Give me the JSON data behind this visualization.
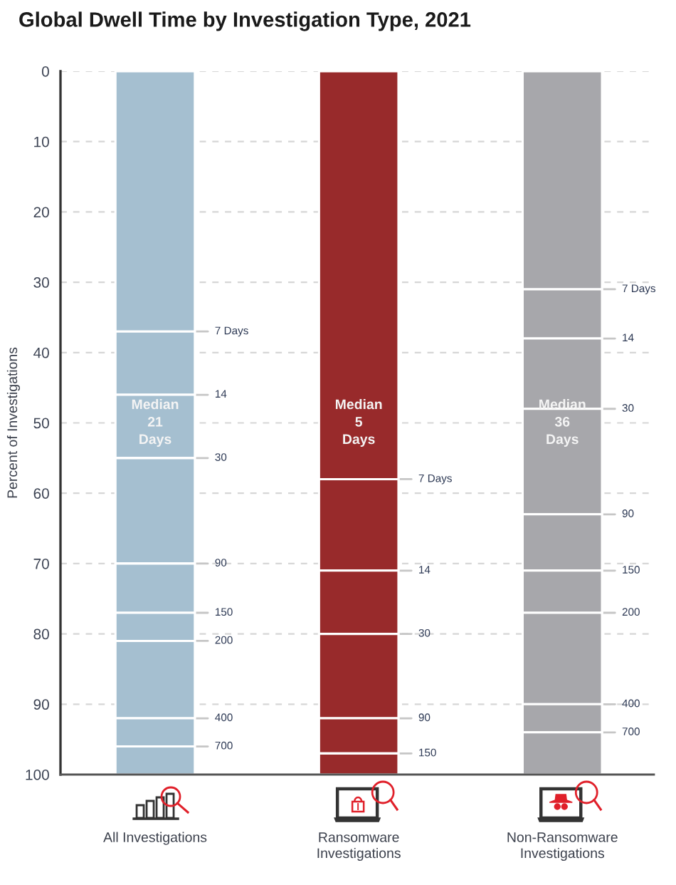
{
  "chart_data": {
    "type": "bar",
    "title": "Global Dwell Time by Investigation Type, 2021",
    "ylabel": "Percent of Investigations",
    "categories": [
      "All Investigations",
      "Ransomware\nInvestigations",
      "Non-Ransomware\nInvestigations"
    ],
    "stacked": true,
    "series": [
      {
        "colors": [
          "#a5bfd0",
          "#982a2b",
          "#a7a7ab"
        ],
        "values": [
          37,
          58,
          31
        ]
      },
      {
        "colors": [
          "#a5bfd0",
          "#982a2b",
          "#a7a7ab"
        ],
        "values": [
          9,
          13,
          7
        ]
      },
      {
        "colors": [
          "#a5bfd0",
          "#982a2b",
          "#a7a7ab"
        ],
        "values": [
          9,
          9,
          10
        ]
      },
      {
        "colors": [
          "#a5bfd0",
          "#982a2b",
          "#a7a7ab"
        ],
        "values": [
          15,
          12,
          15
        ]
      },
      {
        "colors": [
          "#a5bfd0",
          "#982a2b",
          "#a7a7ab"
        ],
        "values": [
          7,
          5,
          8
        ]
      },
      {
        "colors": [
          "#a5bfd0",
          "#982a2b",
          "#a7a7ab"
        ],
        "values": [
          4,
          3,
          6
        ]
      },
      {
        "colors": [
          "#a5bfd0",
          "#982a2b",
          "#a7a7ab"
        ],
        "values": [
          11,
          null,
          13
        ]
      },
      {
        "colors": [
          "#a5bfd0",
          "#982a2b",
          "#a7a7ab"
        ],
        "values": [
          4,
          null,
          4
        ]
      },
      {
        "colors": [
          "#a5bfd0",
          "#982a2b",
          "#a7a7ab"
        ],
        "values": [
          4,
          null,
          6
        ]
      }
    ],
    "ylim": [
      100,
      0
    ],
    "yticks": [
      0,
      10,
      20,
      30,
      40,
      50,
      60,
      70,
      80,
      90,
      100
    ],
    "grid": "y",
    "annotations": [
      "Median\n21\nDays",
      "Median\n5\nDays",
      "Median\n36\nDays",
      {
        "text": "7 Days",
        "x": "All Investigations",
        "y": 37
      },
      {
        "text": "14",
        "x": "All Investigations",
        "y": 46
      },
      {
        "text": "30",
        "x": "All Investigations",
        "y": 55
      },
      {
        "text": "90",
        "x": "All Investigations",
        "y": 70
      },
      {
        "text": "150",
        "x": "All Investigations",
        "y": 77
      },
      {
        "text": "200",
        "x": "All Investigations",
        "y": 81
      },
      {
        "text": "400",
        "x": "All Investigations",
        "y": 92
      },
      {
        "text": "700",
        "x": "All Investigations",
        "y": 96
      },
      {
        "text": "7 Days",
        "x": "Ransomware\nInvestigations",
        "y": 58
      },
      {
        "text": "14",
        "x": "Ransomware\nInvestigations",
        "y": 71
      },
      {
        "text": "30",
        "x": "Ransomware\nInvestigations",
        "y": 80
      },
      {
        "text": "90",
        "x": "Ransomware\nInvestigations",
        "y": 92
      },
      {
        "text": "150",
        "x": "Ransomware\nInvestigations",
        "y": 97
      },
      {
        "text": "7 Days",
        "x": "Non-Ransomware\nInvestigations",
        "y": 31
      },
      {
        "text": "14",
        "x": "Non-Ransomware\nInvestigations",
        "y": 38
      },
      {
        "text": "30",
        "x": "Non-Ransomware\nInvestigations",
        "y": 48
      },
      {
        "text": "90",
        "x": "Non-Ransomware\nInvestigations",
        "y": 63
      },
      {
        "text": "150",
        "x": "Non-Ransomware\nInvestigations",
        "y": 71
      },
      {
        "text": "200",
        "x": "Non-Ransomware\nInvestigations",
        "y": 77
      },
      {
        "text": "400",
        "x": "Non-Ransomware\nInvestigations",
        "y": 90
      },
      {
        "text": "700",
        "x": "Non-Ransomware\nInvestigations",
        "y": 94
      }
    ]
  }
}
